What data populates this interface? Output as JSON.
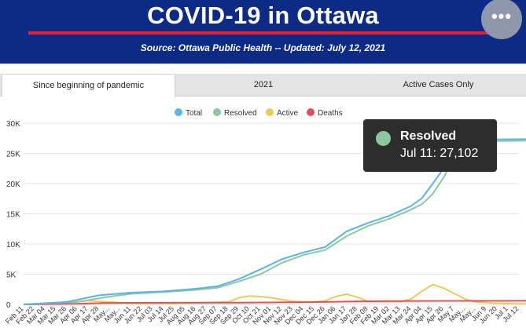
{
  "header": {
    "title": "COVID-19 in Ottawa",
    "subtitle": "Source:  Ottawa Public Health -- Updated:  July 12, 2021"
  },
  "tabs": [
    {
      "label": "Since beginning of pandemic",
      "active": true
    },
    {
      "label": "2021",
      "active": false
    },
    {
      "label": "Active Cases Only",
      "active": false
    }
  ],
  "tooltip": {
    "series": "Resolved",
    "value_text": "Jul 11: 27,102",
    "color": "#8cc7a0"
  },
  "chart_data": {
    "type": "line",
    "title": "",
    "xlabel": "",
    "ylabel": "",
    "ylim": [
      0,
      30000
    ],
    "yticks": [
      0,
      5000,
      10000,
      15000,
      20000,
      25000,
      30000
    ],
    "ytick_labels": [
      "0",
      "5K",
      "10K",
      "15K",
      "20K",
      "25K",
      "30K"
    ],
    "grid": true,
    "legend_position": "top-center",
    "x_tick_labels": [
      "Feb 11",
      "Feb 22",
      "Mar 04",
      "Mar 15",
      "Mar 26",
      "Apr 06",
      "Apr 17",
      "Apr 28",
      "May...",
      "May...",
      "Jun 11",
      "Jun 22",
      "Jul 03",
      "Jul 14",
      "Jul 25",
      "Aug 05",
      "Aug 16",
      "Aug 27",
      "Sep 07",
      "Sep 18",
      "Sep 29",
      "Oct 10",
      "Oct 21",
      "Nov 01",
      "Nov 12",
      "Nov 23",
      "Dec 04",
      "Dec 15",
      "Dec 26",
      "Jan 06",
      "Jan 17",
      "Jan 28",
      "Feb 08",
      "Feb 19",
      "Mar 02",
      "Mar 13",
      "Mar 24",
      "Apr 04",
      "Apr 15",
      "Apr 26",
      "May 7",
      "May...",
      "May...",
      "Jun 9",
      "Jun 20",
      "Jul 1",
      "Jul 12"
    ],
    "series": [
      {
        "name": "Total",
        "color": "#5ab4e5",
        "points": [
          [
            0,
            0
          ],
          [
            4,
            400
          ],
          [
            7,
            1500
          ],
          [
            10,
            1950
          ],
          [
            13,
            2150
          ],
          [
            16,
            2600
          ],
          [
            18,
            3000
          ],
          [
            20,
            4200
          ],
          [
            22,
            5800
          ],
          [
            24,
            7500
          ],
          [
            26,
            8600
          ],
          [
            28,
            9500
          ],
          [
            30,
            12100
          ],
          [
            32,
            13500
          ],
          [
            34,
            14700
          ],
          [
            36,
            16300
          ],
          [
            37,
            17600
          ],
          [
            38,
            20000
          ],
          [
            39,
            22500
          ],
          [
            40,
            25600
          ],
          [
            41,
            26800
          ],
          [
            42,
            27300
          ],
          [
            47,
            27360
          ]
        ]
      },
      {
        "name": "Resolved",
        "color": "#8cc7a0",
        "points": [
          [
            0,
            0
          ],
          [
            5,
            400
          ],
          [
            8,
            1300
          ],
          [
            10,
            1750
          ],
          [
            13,
            2050
          ],
          [
            16,
            2400
          ],
          [
            18,
            2750
          ],
          [
            20,
            3800
          ],
          [
            22,
            5000
          ],
          [
            24,
            6900
          ],
          [
            26,
            8200
          ],
          [
            28,
            9000
          ],
          [
            30,
            11300
          ],
          [
            32,
            13000
          ],
          [
            34,
            14200
          ],
          [
            36,
            15700
          ],
          [
            37,
            16600
          ],
          [
            38,
            18300
          ],
          [
            39,
            21000
          ],
          [
            40,
            24300
          ],
          [
            41,
            26400
          ],
          [
            42,
            27000
          ],
          [
            47,
            27102
          ]
        ]
      },
      {
        "name": "Active",
        "color": "#efc95a",
        "points": [
          [
            0,
            0
          ],
          [
            4,
            300
          ],
          [
            6,
            600
          ],
          [
            8,
            400
          ],
          [
            10,
            200
          ],
          [
            13,
            150
          ],
          [
            16,
            250
          ],
          [
            19,
            400
          ],
          [
            20,
            1100
          ],
          [
            21,
            1400
          ],
          [
            22,
            1300
          ],
          [
            23,
            1100
          ],
          [
            25,
            500
          ],
          [
            27,
            400
          ],
          [
            28,
            600
          ],
          [
            29,
            1300
          ],
          [
            30,
            1700
          ],
          [
            31,
            1200
          ],
          [
            32,
            500
          ],
          [
            35,
            450
          ],
          [
            36,
            900
          ],
          [
            37,
            2200
          ],
          [
            38,
            3300
          ],
          [
            39,
            2700
          ],
          [
            40,
            1800
          ],
          [
            41,
            900
          ],
          [
            42,
            400
          ],
          [
            44,
            150
          ],
          [
            47,
            80
          ]
        ]
      },
      {
        "name": "Deaths",
        "color": "#e05353",
        "points": [
          [
            0,
            0
          ],
          [
            5,
            100
          ],
          [
            8,
            250
          ],
          [
            11,
            270
          ],
          [
            20,
            300
          ],
          [
            25,
            350
          ],
          [
            28,
            400
          ],
          [
            31,
            500
          ],
          [
            34,
            550
          ],
          [
            37,
            570
          ],
          [
            40,
            580
          ],
          [
            47,
            595
          ]
        ]
      }
    ]
  }
}
